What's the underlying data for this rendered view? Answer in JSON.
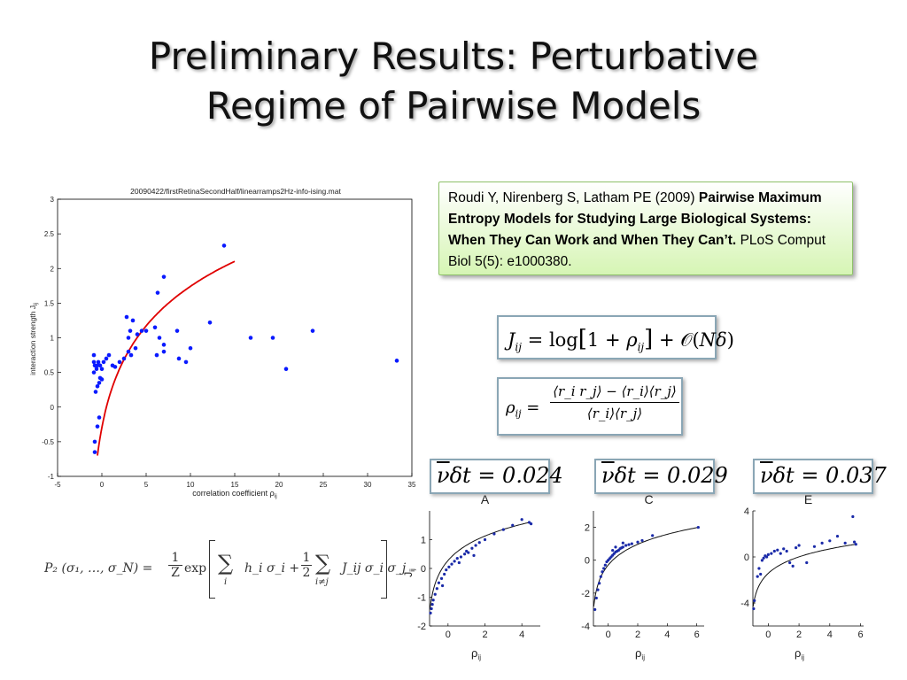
{
  "slide": {
    "title_line1": "Preliminary Results: Perturbative",
    "title_line2": "Regime of Pairwise Models"
  },
  "reference": {
    "authors": "Roudi Y, Nirenberg S, Latham PE (2009)",
    "title": "Pairwise Maximum Entropy Models for Studying Large Biological Systems: When They Can Work and When They Can’t.",
    "journal": "PLoS Comput Biol 5(5): e1000380."
  },
  "equations": {
    "coupling": {
      "lhs": "J",
      "lhs_sub": "ij",
      "equals": " = ",
      "log": "log",
      "open_bracket": "[",
      "one_plus": "1 + ",
      "rho": "ρ",
      "rho_sub": "ij",
      "close_bracket": "]",
      "plus_O": " + 𝒪(",
      "order": "Nδ",
      "close_paren": ")"
    },
    "correlation": {
      "lhs": "ρ",
      "lhs_sub": "ij",
      "equals": " = ",
      "numerator": "⟨r_i r_j⟩ − ⟨r_i⟩⟨r_j⟩",
      "denominator": "⟨r_i⟩⟨r_j⟩"
    },
    "nu_dt": [
      {
        "nu": "ν",
        "rest": "δt = 0.024"
      },
      {
        "nu": "ν",
        "rest": "δt = 0.029"
      },
      {
        "nu": "ν",
        "rest": "δt = 0.037"
      }
    ],
    "pairwise": {
      "lhs": "P₂ (σ₁, …, σ_N) = ",
      "one_over_Z_num": "1",
      "one_over_Z_den": "Z",
      "exp": " exp ",
      "sum1": "∑",
      "sum1_sub": "i",
      "term1": "h_i σ_i + ",
      "half_num": "1",
      "half_den": "2",
      "sum2": "∑",
      "sum2_sub": "i≠j",
      "term2": "J_ij σ_i σ_j"
    }
  },
  "chart_data": [
    {
      "type": "scatter",
      "title": "20090422/firstRetinaSecondHalf/linearramps2Hz-info-ising.mat",
      "xlabel": "correlation coefficient ρ",
      "xlabel_sub": "ij",
      "ylabel": "interaction strength J",
      "ylabel_sub": "ij",
      "xlim": [
        -5,
        35
      ],
      "ylim": [
        -1,
        3
      ],
      "xticks": [
        "-5",
        "0",
        "5",
        "10",
        "15",
        "20",
        "25",
        "30",
        "35"
      ],
      "yticks": [
        "-1",
        "-0.5",
        "0",
        "0.5",
        "1",
        "1.5",
        "2",
        "2.5",
        "3"
      ],
      "series": [
        {
          "color": "#0a1aff",
          "points": [
            [
              -0.8,
              -0.65
            ],
            [
              -0.8,
              -0.5
            ],
            [
              -0.5,
              -0.28
            ],
            [
              -0.3,
              -0.15
            ],
            [
              -0.9,
              0.75
            ],
            [
              -0.9,
              0.65
            ],
            [
              -0.8,
              0.6
            ],
            [
              -0.6,
              0.55
            ],
            [
              -0.9,
              0.5
            ],
            [
              -0.5,
              0.6
            ],
            [
              -0.4,
              0.65
            ],
            [
              -0.2,
              0.6
            ],
            [
              0.0,
              0.55
            ],
            [
              0.2,
              0.65
            ],
            [
              -0.7,
              0.22
            ],
            [
              -0.5,
              0.3
            ],
            [
              -0.3,
              0.35
            ],
            [
              -0.2,
              0.42
            ],
            [
              0.0,
              0.4
            ],
            [
              0.5,
              0.7
            ],
            [
              0.8,
              0.75
            ],
            [
              1.2,
              0.6
            ],
            [
              1.5,
              0.58
            ],
            [
              2.0,
              0.65
            ],
            [
              2.5,
              0.7
            ],
            [
              3.0,
              0.8
            ],
            [
              3.3,
              0.75
            ],
            [
              3.8,
              0.85
            ],
            [
              3.0,
              1.0
            ],
            [
              3.2,
              1.1
            ],
            [
              3.5,
              1.25
            ],
            [
              2.8,
              1.3
            ],
            [
              4.0,
              1.05
            ],
            [
              4.5,
              1.1
            ],
            [
              5.0,
              1.1
            ],
            [
              6.0,
              1.15
            ],
            [
              6.5,
              1.0
            ],
            [
              7.0,
              0.8
            ],
            [
              6.2,
              0.75
            ],
            [
              8.5,
              1.1
            ],
            [
              8.7,
              0.7
            ],
            [
              9.5,
              0.65
            ],
            [
              10.0,
              0.85
            ],
            [
              7.0,
              0.9
            ],
            [
              6.3,
              1.65
            ],
            [
              7.0,
              1.88
            ],
            [
              12.2,
              1.22
            ],
            [
              13.8,
              2.33
            ],
            [
              16.8,
              1.0
            ],
            [
              19.3,
              1.0
            ],
            [
              23.8,
              1.1
            ],
            [
              20.8,
              0.55
            ],
            [
              33.3,
              0.67
            ]
          ]
        }
      ],
      "curve": {
        "color": "#e00000",
        "label": ""
      }
    },
    {
      "type": "scatter",
      "panel_label": "A",
      "xlabel": "ρ",
      "xlabel_sub": "ij",
      "ylabel": "J",
      "ylabel_sub": "ij",
      "xlim": [
        -1,
        5
      ],
      "ylim": [
        -2,
        2
      ],
      "xticks": [
        "0",
        "2",
        "4"
      ],
      "yticks": [
        "-2",
        "-1",
        "0",
        "1"
      ],
      "points": [
        [
          -0.95,
          -1.55
        ],
        [
          -0.9,
          -1.4
        ],
        [
          -0.85,
          -1.25
        ],
        [
          -0.8,
          -1.1
        ],
        [
          -0.7,
          -0.9
        ],
        [
          -0.6,
          -0.7
        ],
        [
          -0.5,
          -0.5
        ],
        [
          -0.35,
          -0.35
        ],
        [
          -0.2,
          -0.2
        ],
        [
          -0.1,
          -0.05
        ],
        [
          0.05,
          0.05
        ],
        [
          0.2,
          0.15
        ],
        [
          0.35,
          0.25
        ],
        [
          0.5,
          0.35
        ],
        [
          0.7,
          0.4
        ],
        [
          0.9,
          0.5
        ],
        [
          1.1,
          0.55
        ],
        [
          1.3,
          0.7
        ],
        [
          1.5,
          0.8
        ],
        [
          1.7,
          0.9
        ],
        [
          2.0,
          1.0
        ],
        [
          1.4,
          0.45
        ],
        [
          1.0,
          0.6
        ],
        [
          0.6,
          0.2
        ],
        [
          -0.3,
          -0.6
        ],
        [
          2.5,
          1.2
        ],
        [
          3.0,
          1.35
        ],
        [
          3.5,
          1.5
        ],
        [
          4.0,
          1.7
        ],
        [
          4.5,
          1.55
        ],
        [
          4.4,
          1.6
        ]
      ]
    },
    {
      "type": "scatter",
      "panel_label": "C",
      "xlabel": "ρ",
      "xlabel_sub": "ij",
      "ylabel": "",
      "ylabel_sub": "",
      "xlim": [
        -1,
        6.5
      ],
      "ylim": [
        -4,
        3
      ],
      "xticks": [
        "0",
        "2",
        "4",
        "6"
      ],
      "yticks": [
        "-4",
        "-2",
        "0",
        "2"
      ],
      "points": [
        [
          -0.9,
          -3.0
        ],
        [
          -0.8,
          -2.3
        ],
        [
          -0.7,
          -1.8
        ],
        [
          -0.6,
          -1.4
        ],
        [
          -0.5,
          -1.0
        ],
        [
          -0.4,
          -0.7
        ],
        [
          -0.3,
          -0.5
        ],
        [
          -0.2,
          -0.3
        ],
        [
          -0.1,
          -0.1
        ],
        [
          0.0,
          0.0
        ],
        [
          0.1,
          0.1
        ],
        [
          0.2,
          0.2
        ],
        [
          0.3,
          0.3
        ],
        [
          0.4,
          0.4
        ],
        [
          0.5,
          0.5
        ],
        [
          0.6,
          0.55
        ],
        [
          0.7,
          0.6
        ],
        [
          0.8,
          0.7
        ],
        [
          0.9,
          0.75
        ],
        [
          1.0,
          0.8
        ],
        [
          1.2,
          0.9
        ],
        [
          1.4,
          0.95
        ],
        [
          1.6,
          1.0
        ],
        [
          1.0,
          1.05
        ],
        [
          0.5,
          0.8
        ],
        [
          0.3,
          0.6
        ],
        [
          2.0,
          1.1
        ],
        [
          2.3,
          1.2
        ],
        [
          3.0,
          1.5
        ],
        [
          6.1,
          2.0
        ]
      ]
    },
    {
      "type": "scatter",
      "panel_label": "E",
      "xlabel": "ρ",
      "xlabel_sub": "ij",
      "ylabel": "",
      "ylabel_sub": "",
      "xlim": [
        -1,
        6.2
      ],
      "ylim": [
        -6,
        4
      ],
      "xticks": [
        "0",
        "2",
        "4",
        "6"
      ],
      "yticks": [
        "-4",
        "0",
        "4"
      ],
      "points": [
        [
          -0.95,
          -4.5
        ],
        [
          -0.9,
          -3.8
        ],
        [
          -0.7,
          -1.7
        ],
        [
          -0.6,
          -1.0
        ],
        [
          -0.5,
          -1.5
        ],
        [
          -0.4,
          -0.3
        ],
        [
          -0.3,
          -0.1
        ],
        [
          -0.2,
          0.1
        ],
        [
          -0.1,
          0.0
        ],
        [
          0.0,
          0.2
        ],
        [
          0.2,
          0.3
        ],
        [
          0.4,
          0.5
        ],
        [
          0.6,
          0.6
        ],
        [
          0.8,
          0.3
        ],
        [
          1.0,
          0.7
        ],
        [
          1.2,
          0.5
        ],
        [
          1.4,
          -0.5
        ],
        [
          1.6,
          -0.8
        ],
        [
          1.8,
          0.8
        ],
        [
          2.0,
          1.0
        ],
        [
          2.5,
          -0.5
        ],
        [
          3.0,
          0.9
        ],
        [
          3.5,
          1.2
        ],
        [
          4.0,
          1.4
        ],
        [
          4.5,
          1.8
        ],
        [
          5.0,
          1.2
        ],
        [
          5.5,
          3.5
        ],
        [
          5.6,
          1.3
        ],
        [
          5.7,
          1.1
        ]
      ]
    }
  ]
}
